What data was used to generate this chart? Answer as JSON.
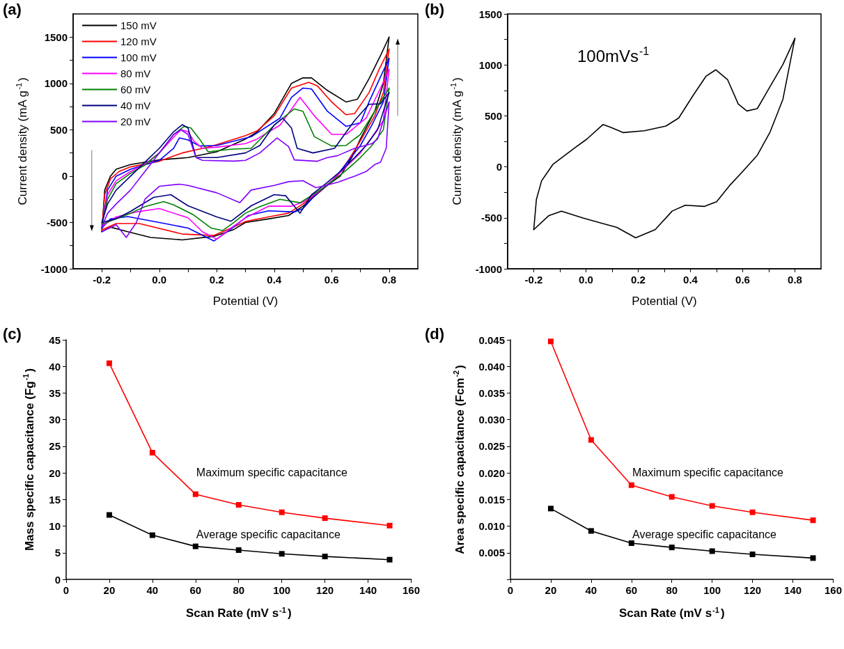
{
  "chart_data": [
    {
      "type": "line",
      "annotations": [
        "(a)"
      ],
      "xlabel": "Potential (V)",
      "ylabel": "Current density (mA g$^{-1}$)",
      "xlim": [
        -0.3,
        0.9
      ],
      "xticks": [
        -0.2,
        {
          "value": -0.1,
          "label": null
        },
        {
          "value": 0,
          "label": "0.0"
        },
        {
          "value": 0.1,
          "label": null
        },
        0.2,
        {
          "value": 0.3,
          "label": null
        },
        0.4,
        {
          "value": 0.5,
          "label": null
        },
        0.6,
        {
          "value": 0.7,
          "label": null
        },
        0.8
      ],
      "ylim": [
        -1000,
        1750
      ],
      "yticks": [
        -1000,
        {
          "value": -750,
          "label": null
        },
        -500,
        {
          "value": -250,
          "label": null
        },
        0,
        {
          "value": 250,
          "label": null
        },
        500,
        {
          "value": 750,
          "label": null
        },
        1000,
        {
          "value": 1250,
          "label": null
        },
        1500
      ],
      "legend": "top left",
      "series": [
        {
          "name": "150 mV",
          "color": "#000000",
          "x": [
            -0.2,
            -0.19,
            -0.17,
            -0.15,
            -0.1,
            0,
            0.1,
            0.2,
            0.3,
            0.34,
            0.4,
            0.46,
            0.5,
            0.53,
            0.585,
            0.65,
            0.69,
            0.73,
            0.77,
            0.8
          ],
          "values": [
            -600,
            -150,
            0,
            75,
            125,
            175,
            200,
            262,
            400,
            475,
            675,
            1000,
            1060,
            1060,
            925,
            800,
            830,
            1050,
            1300,
            1500
          ]
        },
        {
          "color": "#000000",
          "x": [
            0.8,
            0.78,
            0.75,
            0.7,
            0.67,
            0.63,
            0.585,
            0.5,
            0.45,
            0.38,
            0.3,
            0.26,
            0.19,
            0.08,
            -0.03,
            -0.11,
            -0.17,
            -0.2
          ],
          "values": [
            1500,
            1000,
            700,
            400,
            200,
            0,
            -100,
            -325,
            -425,
            -462,
            -500,
            -575,
            -650,
            -688,
            -662,
            -600,
            -550,
            -600
          ]
        },
        {
          "name": "120 mV",
          "color": "#ff0000",
          "x": [
            -0.2,
            -0.19,
            -0.17,
            -0.14,
            -0.1,
            -0.05,
            0,
            0.08,
            0.18,
            0.3,
            0.34,
            0.4,
            0.46,
            0.52,
            0.55,
            0.6,
            0.65,
            0.68,
            0.73,
            0.765,
            0.8
          ],
          "values": [
            -580,
            -200,
            -30,
            50,
            100,
            130,
            160,
            250,
            320,
            437,
            487,
            650,
            950,
            1012,
            975,
            800,
            662,
            675,
            900,
            1150,
            1370
          ]
        },
        {
          "color": "#ff0000",
          "x": [
            0.8,
            0.78,
            0.75,
            0.7,
            0.66,
            0.62,
            0.585,
            0.5,
            0.45,
            0.38,
            0.3,
            0.25,
            0.19,
            0.08,
            -0.07,
            -0.15,
            -0.2
          ],
          "values": [
            1370,
            900,
            650,
            380,
            180,
            0,
            -100,
            -300,
            -400,
            -440,
            -490,
            -560,
            -640,
            -625,
            -512,
            -512,
            -580
          ]
        },
        {
          "name": "100 mV",
          "color": "#0000ff",
          "x": [
            -0.2,
            -0.18,
            -0.15,
            -0.1,
            0,
            0.05,
            0.07,
            0.1,
            0.14,
            0.2,
            0.32,
            0.42,
            0.46,
            0.5,
            0.53,
            0.585,
            0.65,
            0.7,
            0.73,
            0.765,
            0.8
          ],
          "values": [
            -560,
            -150,
            0,
            75,
            170,
            300,
            412,
            390,
            325,
            330,
            425,
            625,
            850,
            950,
            940,
            700,
            537,
            575,
            800,
            1037,
            1270
          ]
        },
        {
          "color": "#0000ff",
          "x": [
            0.8,
            0.78,
            0.74,
            0.7,
            0.65,
            0.6,
            0.55,
            0.5,
            0.47,
            0.38,
            0.31,
            0.25,
            0.19,
            0.1,
            0,
            -0.11,
            -0.17,
            -0.2
          ],
          "values": [
            1270,
            800,
            550,
            330,
            130,
            -60,
            -180,
            -350,
            -387,
            -375,
            -425,
            -570,
            -700,
            -560,
            -500,
            -437,
            -462,
            -560
          ]
        },
        {
          "name": "80 mV",
          "color": "#ff00ff",
          "x": [
            -0.2,
            -0.18,
            -0.15,
            -0.1,
            -0.05,
            0,
            0.05,
            0.075,
            0.1,
            0.12,
            0.15,
            0.2,
            0.3,
            0.34,
            0.42,
            0.49,
            0.54,
            0.6,
            0.65,
            0.72,
            0.77,
            0.8
          ],
          "values": [
            -540,
            -200,
            -50,
            50,
            130,
            250,
            420,
            500,
            480,
            380,
            300,
            312,
            350,
            400,
            550,
            850,
            650,
            450,
            450,
            625,
            950,
            1150
          ]
        },
        {
          "color": "#ff00ff",
          "x": [
            0.8,
            0.78,
            0.74,
            0.7,
            0.65,
            0.6,
            0.55,
            0.5,
            0.46,
            0.38,
            0.3,
            0.25,
            0.2,
            0.15,
            0.1,
            0,
            -0.08,
            -0.15,
            -0.2
          ],
          "values": [
            1150,
            600,
            420,
            250,
            100,
            -50,
            -180,
            -280,
            -325,
            -325,
            -450,
            -560,
            -680,
            -600,
            -450,
            -350,
            -387,
            -440,
            -540
          ]
        },
        {
          "name": "60 mV",
          "color": "#008000",
          "x": [
            -0.2,
            -0.18,
            -0.15,
            -0.1,
            -0.05,
            0,
            0.05,
            0.087,
            0.11,
            0.14,
            0.17,
            0.25,
            0.32,
            0.4,
            0.47,
            0.5,
            0.54,
            0.6,
            0.65,
            0.7,
            0.75,
            0.8
          ],
          "values": [
            -520,
            -250,
            -80,
            30,
            120,
            250,
            450,
            537,
            520,
            400,
            262,
            290,
            300,
            550,
            725,
            700,
            425,
            325,
            330,
            450,
            700,
            950
          ]
        },
        {
          "color": "#008000",
          "x": [
            0.8,
            0.78,
            0.74,
            0.7,
            0.65,
            0.6,
            0.55,
            0.49,
            0.42,
            0.35,
            0.3,
            0.26,
            0.22,
            0.18,
            0.12,
            0.05,
            0.015,
            -0.05,
            -0.1,
            -0.15,
            -0.2
          ],
          "values": [
            950,
            500,
            330,
            200,
            60,
            -60,
            -170,
            -287,
            -250,
            -330,
            -400,
            -500,
            -587,
            -560,
            -420,
            -310,
            -275,
            -330,
            -400,
            -460,
            -520
          ]
        },
        {
          "name": "40 mV",
          "color": "#000080",
          "x": [
            -0.2,
            -0.18,
            -0.15,
            -0.1,
            -0.05,
            0,
            0.05,
            0.08,
            0.1,
            0.128,
            0.2,
            0.3,
            0.35,
            0.4,
            0.43,
            0.46,
            0.48,
            0.535,
            0.61,
            0.68,
            0.73,
            0.77,
            0.8
          ],
          "values": [
            -500,
            -300,
            -150,
            0,
            150,
            300,
            480,
            555,
            520,
            200,
            200,
            250,
            330,
            550,
            625,
            520,
            300,
            250,
            300,
            600,
            775,
            780,
            900
          ]
        },
        {
          "color": "#000080",
          "x": [
            0.8,
            0.76,
            0.72,
            0.68,
            0.63,
            0.58,
            0.53,
            0.49,
            0.44,
            0.4,
            0.32,
            0.25,
            0.2,
            0.1,
            0.04,
            -0.02,
            -0.1,
            -0.15,
            -0.2
          ],
          "values": [
            900,
            500,
            330,
            200,
            50,
            -80,
            -200,
            -400,
            -212,
            -200,
            -320,
            -487,
            -440,
            -320,
            -200,
            -230,
            -380,
            -460,
            -500
          ]
        },
        {
          "name": "20 mV",
          "color": "#8000ff",
          "x": [
            -0.2,
            -0.18,
            -0.15,
            -0.1,
            -0.05,
            0,
            0.05,
            0.075,
            0.1,
            0.128,
            0.15,
            0.26,
            0.3,
            0.35,
            0.41,
            0.45,
            0.47,
            0.55,
            0.585,
            0.62,
            0.68,
            0.74,
            0.76,
            0.78,
            0.8
          ],
          "values": [
            -550,
            -400,
            -300,
            -150,
            50,
            250,
            450,
            500,
            450,
            200,
            170,
            162,
            170,
            250,
            412,
            320,
            175,
            160,
            200,
            220,
            300,
            350,
            400,
            600,
            800
          ]
        },
        {
          "color": "#8000ff",
          "x": [
            0.8,
            0.79,
            0.77,
            0.75,
            0.72,
            0.68,
            0.625,
            0.58,
            0.545,
            0.5,
            0.45,
            0.4,
            0.32,
            0.28,
            0.2,
            0.1,
            0.07,
            0,
            -0.05,
            -0.08,
            -0.115,
            -0.15,
            -0.2
          ],
          "values": [
            800,
            300,
            150,
            125,
            50,
            0,
            -62,
            -100,
            -125,
            -50,
            -60,
            -100,
            -150,
            -287,
            -180,
            -100,
            -87,
            -110,
            -250,
            -500,
            -662,
            -525,
            -600
          ]
        }
      ]
    },
    {
      "type": "line",
      "annotations": [
        "(b)",
        "100mVs$^{-1}$"
      ],
      "xlabel": "Potential (V)",
      "ylabel": "Current density (mA g$^{-1}$)",
      "xlim": [
        -0.3,
        0.9
      ],
      "xticks": [
        -0.2,
        {
          "value": -0.1,
          "label": null
        },
        {
          "value": 0,
          "label": "0.0"
        },
        {
          "value": 0.1,
          "label": null
        },
        0.2,
        {
          "value": 0.3,
          "label": null
        },
        0.4,
        {
          "value": 0.5,
          "label": null
        },
        0.6,
        {
          "value": 0.7,
          "label": null
        },
        0.8
      ],
      "ylim": [
        -1000,
        1500
      ],
      "yticks": [
        -1000,
        {
          "value": -750,
          "label": null
        },
        -500,
        {
          "value": -250,
          "label": null
        },
        0,
        {
          "value": 250,
          "label": null
        },
        500,
        {
          "value": 750,
          "label": null
        },
        1000,
        {
          "value": 1250,
          "label": null
        },
        1500
      ],
      "series": [
        {
          "color": "#000000",
          "x": [
            -0.2,
            -0.19,
            -0.17,
            -0.127,
            -0.045,
            0.004,
            0.065,
            0.094,
            0.143,
            0.224,
            0.306,
            0.355,
            0.412,
            0.46,
            0.497,
            0.542,
            0.583,
            0.616,
            0.656,
            0.697,
            0.754,
            0.8
          ],
          "values": [
            -616,
            -320,
            -137,
            23,
            183,
            274,
            415,
            388,
            336,
            354,
            400,
            479,
            708,
            890,
            952,
            856,
            616,
            548,
            571,
            753,
            1004,
            1260
          ]
        },
        {
          "color": "#000000",
          "x": [
            0.8,
            0.754,
            0.705,
            0.656,
            0.6,
            0.55,
            0.5,
            0.453,
            0.38,
            0.33,
            0.265,
            0.19,
            0.118,
            0.069,
            -0.012,
            -0.094,
            -0.143,
            -0.2
          ],
          "values": [
            1260,
            662,
            342,
            114,
            -46,
            -183,
            -342,
            -388,
            -377,
            -434,
            -616,
            -696,
            -594,
            -560,
            -502,
            -434,
            -480,
            -616
          ]
        }
      ]
    },
    {
      "type": "line",
      "marker": "square",
      "annotations": [
        "(c)",
        "Maximum specific capacitance",
        "Average specific capacitance"
      ],
      "xlabel": "Scan Rate (mV s$^{-1}$)",
      "ylabel": "Mass specific capacitance (Fg$^{-1}$)",
      "x": [
        20,
        40,
        60,
        80,
        100,
        120,
        150
      ],
      "xlim": [
        0,
        160
      ],
      "xticks": [
        0,
        20,
        40,
        60,
        80,
        100,
        120,
        140,
        160
      ],
      "ylim": [
        0,
        45
      ],
      "yticks": [
        0,
        5,
        10,
        15,
        20,
        25,
        30,
        35,
        40,
        45
      ],
      "series": [
        {
          "color": "#ff0000",
          "values": [
            40.6,
            23.8,
            16,
            14,
            12.6,
            11.5,
            10.1
          ]
        },
        {
          "color": "#000000",
          "values": [
            12.1,
            8.3,
            6.2,
            5.5,
            4.8,
            4.3,
            3.7
          ]
        }
      ]
    },
    {
      "type": "line",
      "marker": "square",
      "annotations": [
        "(d)",
        "Maximum specific capacitance",
        "Average specific capacitance"
      ],
      "xlabel": "Scan Rate (mV s$^{-1}$)",
      "ylabel": "Area specific capacitance (Fcm$^{-2}$)",
      "x": [
        20,
        40,
        60,
        80,
        100,
        120,
        150
      ],
      "xlim": [
        0,
        160
      ],
      "xticks": [
        0,
        20,
        40,
        60,
        80,
        100,
        120,
        140,
        160
      ],
      "ylim": [
        0,
        0.045
      ],
      "yticks": [
        {
          "value": 0,
          "label": null
        },
        0.005,
        {
          "value": 0.01,
          "label": "0.010"
        },
        0.015,
        {
          "value": 0.02,
          "label": "0.020"
        },
        0.025,
        {
          "value": 0.03,
          "label": "0.030"
        },
        0.035,
        {
          "value": 0.04,
          "label": "0.040"
        },
        0.045
      ],
      "series": [
        {
          "color": "#ff0000",
          "values": [
            0.0447,
            0.0262,
            0.0177,
            0.0155,
            0.0138,
            0.0126,
            0.0111
          ]
        },
        {
          "color": "#000000",
          "values": [
            0.0133,
            0.0091,
            0.0068,
            0.006,
            0.0053,
            0.0047,
            0.004
          ]
        }
      ]
    }
  ]
}
